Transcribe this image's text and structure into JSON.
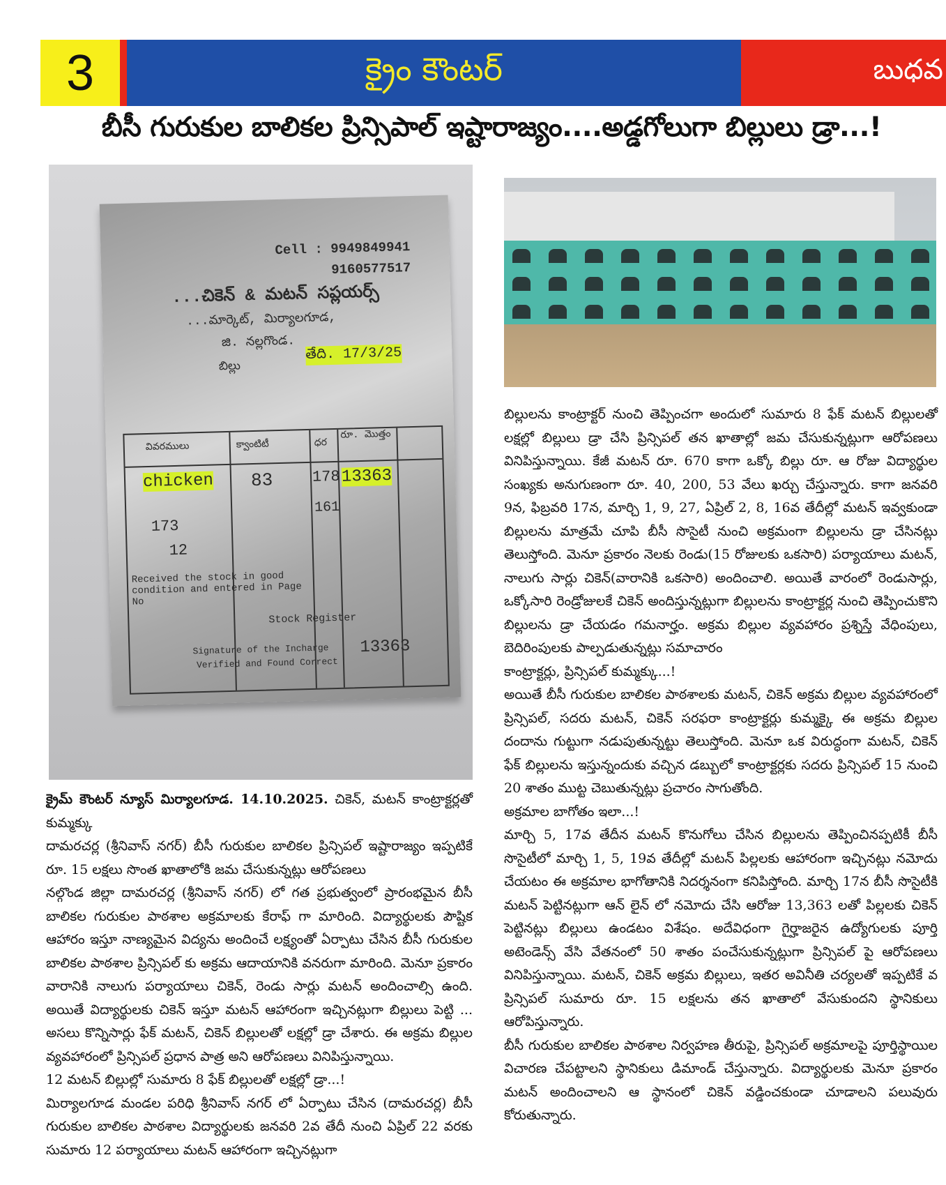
{
  "masthead": {
    "page_number": "3",
    "paper_name": "క్రైం కౌంటర్",
    "day": "బుధవ",
    "colors": {
      "page_box": "#f7ef1a",
      "brand_bar": "#1f4fa7",
      "accent": "#e8281b",
      "brand_text": "#f4ea2a"
    }
  },
  "headline": "బీసీ గురుకుల బాలికల ప్రిన్సిపాల్ ఇష్టారాజ్యం....అడ్డగోలుగా బిల్లులు డ్రా...!",
  "receipt_photo": {
    "cell_1": "Cell : 9949849941",
    "cell_2": "9160577517",
    "shop_name": "...చికెన్ & మటన్ సప్లయర్స్",
    "address_1": "...మార్కెట్, మిర్యాలగూడ,",
    "address_2": "జి. నల్లగొండ.",
    "bill_label": "బిల్లు",
    "date": "తేది. 17/3/25",
    "col_headers": [
      "వివరములు",
      "క్వాంటిటీ",
      "ధర",
      "రూ. మొత్తం"
    ],
    "item": "chicken",
    "quantity": "83",
    "rate": "178",
    "amount": "13363",
    "rate_alt": "161",
    "note_1": "173",
    "note_2": "12",
    "stamp_1": "Received the stock in good condition and entered in Page No",
    "stamp_2": "Stock Register",
    "stamp_3": "Signature of the Incharge",
    "stamp_4": "Verified and Found Correct",
    "total": "13363"
  },
  "left_column": {
    "dateline_bold": "క్రైమ్ కౌంటర్ న్యూస్ మిర్యాలగూడ. 14.10.2025.",
    "dateline_rest": " చికెన్, మటన్ కాంట్రాక్టర్లతో కుమ్మక్కు",
    "paragraphs": [
      "దామరచర్ల (శ్రీనివాస్ నగర్) బీసీ గురుకుల బాలికల ప్రిన్సిపల్ ఇష్టారాజ్యం ఇప్పటికే రూ. 15 లక్షలు సొంత ఖాతాలోకి జమ చేసుకున్నట్లు ఆరోపణలు",
      "నల్గొండ జిల్లా దామరచర్ల (శ్రీనివాస్ నగర్) లో గత ప్రభుత్వంలో ప్రారంభమైన బీసీ బాలికల గురుకుల పాఠశాల అక్రమాలకు కేరాఫ్ గా మారింది. విద్యార్థులకు పౌష్టిక ఆహారం ఇస్తూ నాణ్యమైన విద్యను అందించే లక్ష్యంతో ఏర్పాటు చేసిన బీసీ గురుకుల బాలికల పాఠశాల ప్రిన్సిపల్ కు అక్రమ ఆదాయానికి వనరుగా మారింది. మెనూ ప్రకారం వారానికి నాలుగు పర్యాయాలు చికెన్, రెండు సార్లు మటన్ అందించాల్సి ఉంది. అయితే విద్యార్థులకు చికెన్ ఇస్తూ మటన్ ఆహారంగా ఇచ్చినట్లుగా బిల్లులు పెట్టి ... అసలు కొన్నిసార్లు ఫేక్ మటన్, చికెన్ బిల్లులతో లక్షల్లో డ్రా చేశారు. ఈ అక్రమ బిల్లుల వ్యవహారంలో ప్రిన్సిపల్ ప్రధాన పాత్ర అని ఆరోపణలు వినిపిస్తున్నాయి.",
      "12 మటన్ బిల్లుల్లో సుమారు 8 ఫేక్ బిల్లులతో లక్షల్లో డ్రా...!",
      "మిర్యాలగూడ మండల పరిధి శ్రీనివాస్ నగర్ లో ఏర్పాటు చేసిన (దామరచర్ల) బీసీ గురుకుల బాలికల పాఠశాల విద్యార్థులకు జనవరి 2వ తేదీ నుంచి ఏప్రిల్ 22 వరకు సుమారు 12 పర్యాయాలు మటన్ ఆహారంగా ఇచ్చినట్లుగా"
    ]
  },
  "right_column": {
    "paragraphs": [
      "బిల్లులను కాంట్రాక్టర్ నుంచి తెప్పించగా అందులో సుమారు 8 ఫేక్ మటన్ బిల్లులతో లక్షల్లో బిల్లులు డ్రా చేసి ప్రిన్సిపల్ తన ఖాతాల్లో జమ చేసుకున్నట్లుగా ఆరోపణలు వినిపిస్తున్నాయి. కేజీ మటన్ రూ. 670 కాగా ఒక్కో బిల్లు రూ. ఆ రోజు విద్యార్థుల సంఖ్యకు అనుగుణంగా రూ. 40, 200, 53 వేలు ఖర్చు చేస్తున్నారు. కాగా జనవరి 9న, ఫిబ్రవరి 17న, మార్చి 1, 9, 27, ఏప్రిల్ 2, 8, 16వ తేదీల్లో మటన్ ఇవ్వకుండా బిల్లులను మాత్రమే చూపి బీసీ సొసైటీ నుంచి అక్రమంగా బిల్లులను డ్రా చేసినట్లు తెలుస్తోంది. మెనూ ప్రకారం నెలకు రెండు(15 రోజులకు ఒకసారి) పర్యాయాలు మటన్, నాలుగు సార్లు చికెన్(వారానికి ఒకసారి) అందించాలి. అయితే వారంలో రెండుసార్లు, ఒక్కోసారి రెండ్రోజులకే చికెన్ అందిస్తున్నట్లుగా బిల్లులను కాంట్రాక్టర్ల నుంచి తెప్పించుకొని బిల్లులను డ్రా చేయడం గమనార్హం. అక్రమ బిల్లుల వ్యవహారం ప్రశ్నిస్తే వేధింపులు, బెదిరింపులకు పాల్పడుతున్నట్లు సమాచారం",
      " కాంట్రాక్టర్లు, ప్రిన్సిపల్ కుమ్మక్కు...!",
      "అయితే బీసీ గురుకుల బాలికల పాఠశాలకు మటన్, చికెన్ అక్రమ బిల్లుల వ్యవహారంలో ప్రిన్సిపల్, సదరు మటన్, చికెన్ సరఫరా కాంట్రాక్టర్లు కుమ్మక్కై ఈ అక్రమ బిల్లుల దందాను గుట్టుగా నడుపుతున్నట్టు తెలుస్తోంది. మెనూ ఒక విరుద్ధంగా మటన్, చికెన్ ఫేక్ బిల్లులను ఇస్తున్నందుకు వచ్చిన డబ్బులో కాంట్రాక్టర్లకు సదరు ప్రిన్సిపల్ 15 నుంచి 20 శాతం ముట్ట చెబుతున్నట్లు ప్రచారం సాగుతోంది.",
      "అక్రమాల బాగోతం ఇలా...!",
      "మార్చి 5, 17వ తేదీన మటన్ కొనుగోలు చేసిన బిల్లులను తెప్పించినప్పటికీ బీసీ సొసైటీలో మార్చి 1, 5, 19వ తేదీల్లో మటన్ పిల్లలకు ఆహారంగా ఇచ్చినట్లు నమోదు చేయటం ఈ అక్రమాల భాగోతానికి నిదర్శనంగా కనిపిస్తోంది. మార్చి 17న బీసీ సొసైటీకి మటన్ పెట్టినట్లుగా ఆన్ లైన్ లో నమోదు చేసి ఆరోజు 13,363 లతో పిల్లలకు చికెన్ పెట్టినట్లు బిల్లులు ఉండటం విశేషం. అదేవిధంగా గైర్హాజరైన ఉద్యోగులకు పూర్తి అటెండెన్స్ వేసి వేతనంలో 50 శాతం పంచేసుకున్నట్లుగా ప్రిన్సిపల్ పై ఆరోపణలు వినిపిస్తున్నాయి. మటన్, చికెన్ అక్రమ బిల్లులు, ఇతర అవినీతి చర్యలతో ఇప్పటికే వ ప్రిన్సిపల్ సుమారు రూ. 15 లక్షలను తన ఖాతాలో వేసుకుందని స్థానికులు ఆరోపిస్తున్నారు.",
      "బీసీ గురుకుల బాలికల పాఠశాల నిర్వహణ తీరుపై, ప్రిన్సిపల్ అక్రమాలపై పూర్తిస్థాయిల విచారణ చేపట్టాలని స్థానికులు డిమాండ్ చేస్తున్నారు. విద్యార్థులకు మెనూ ప్రకారం మటన్ అందించాలని ఆ స్థానంలో చికెన్ వడ్డించకుండా చూడాలని పలువురు కోరుతున్నారు."
    ]
  }
}
